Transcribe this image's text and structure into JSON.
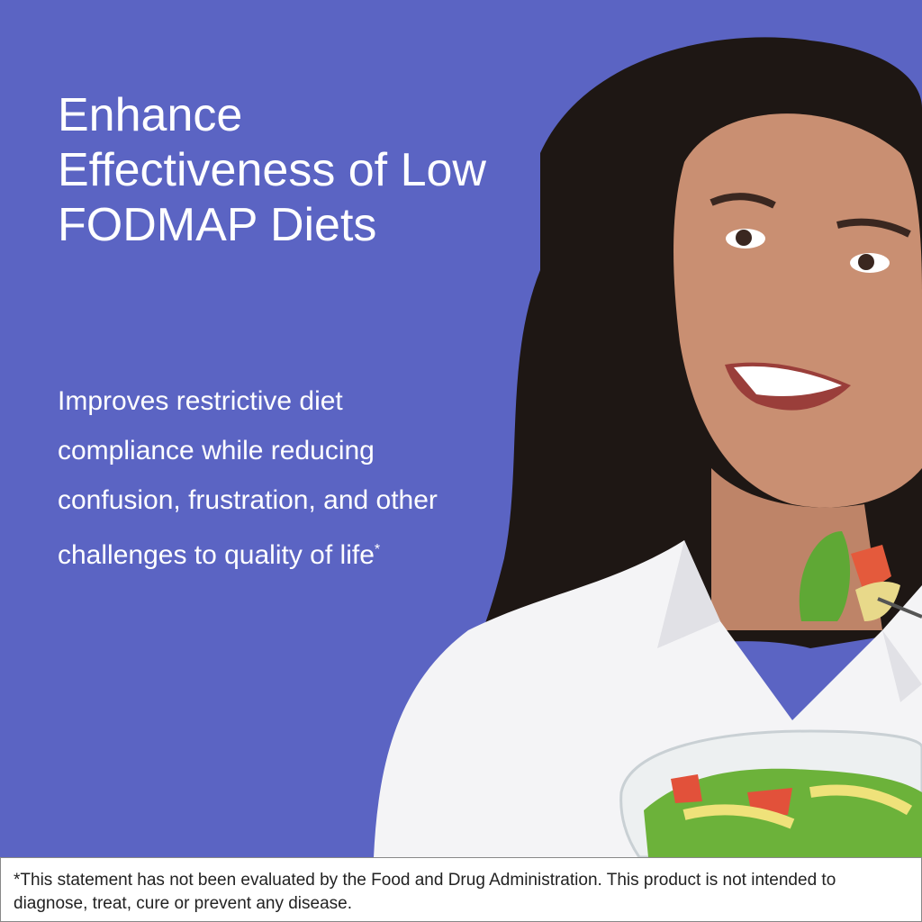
{
  "hero": {
    "title": "Enhance Effectiveness of Low FODMAP Diets",
    "subtitle": "Improves restrictive diet compliance while reducing confusion, frustration, and other challenges to quality of life",
    "subtitle_mark": "*",
    "background_color": "#5b64c3"
  },
  "footer": {
    "disclaimer": "*This statement has not been evaluated by the Food and Drug Administration. This product is not intended to diagnose, treat, cure or prevent any disease."
  }
}
